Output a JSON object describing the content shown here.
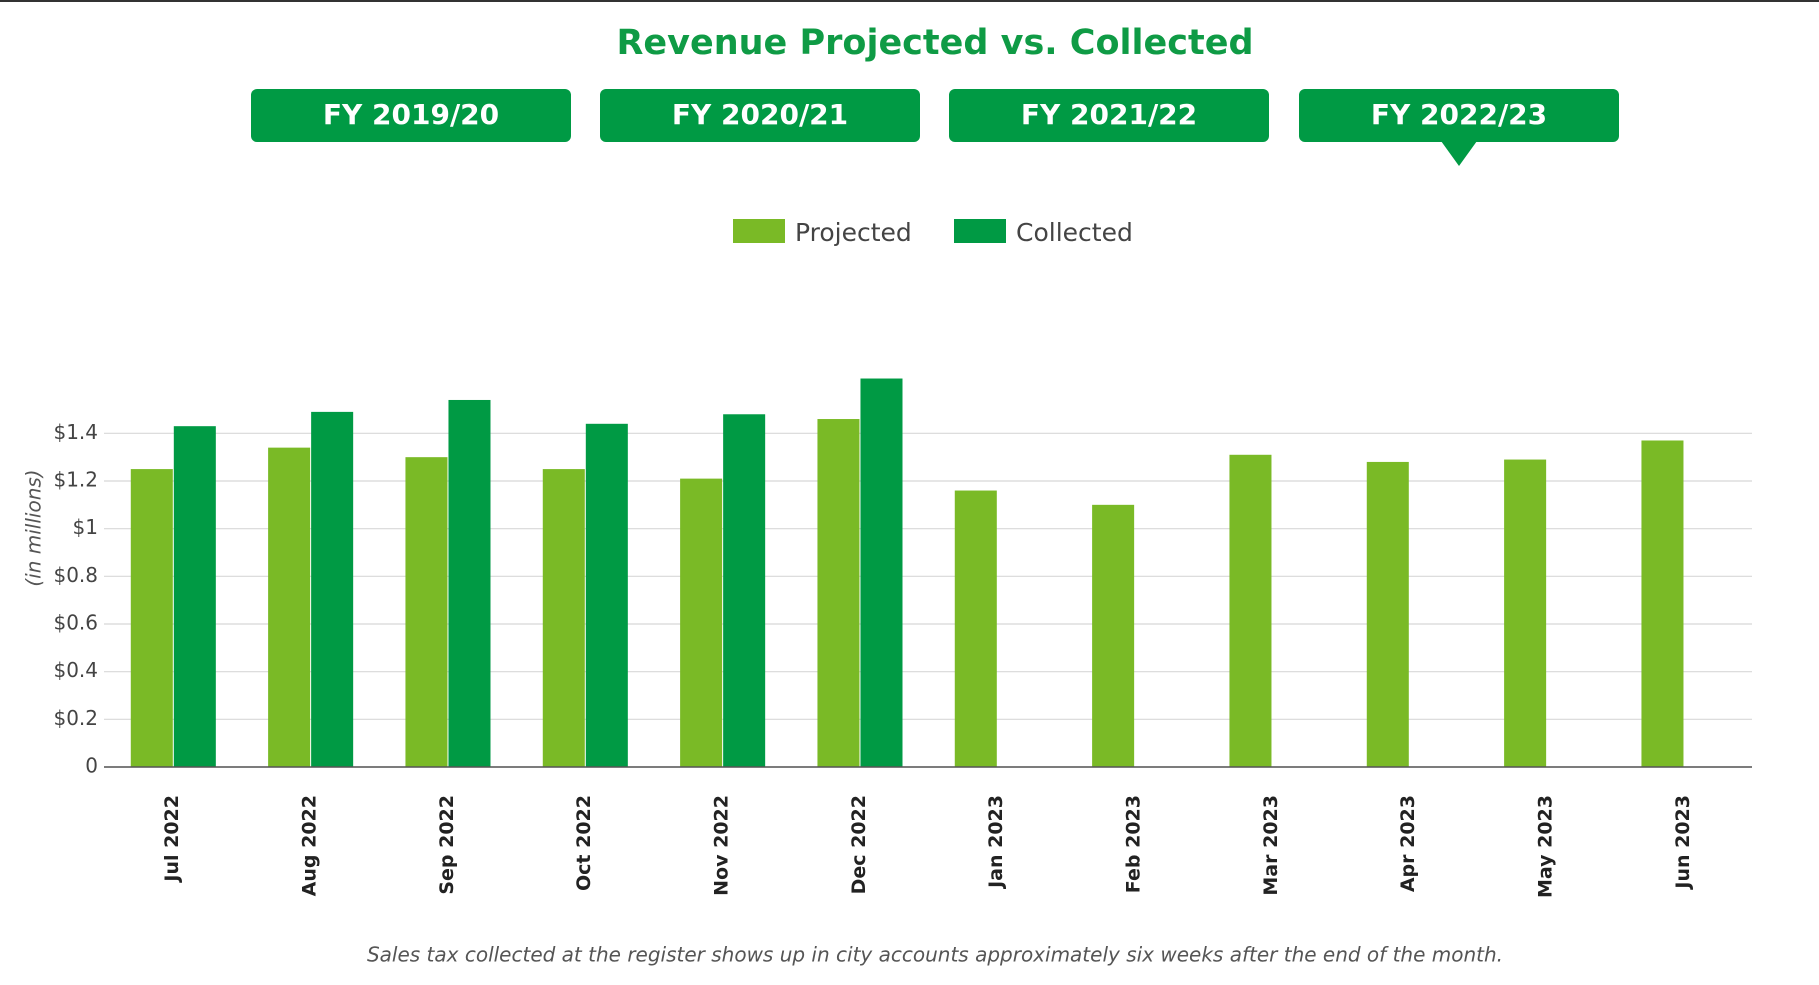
{
  "tabs": [
    {
      "label": "FY 2019/20",
      "selected": false
    },
    {
      "label": "FY 2020/21",
      "selected": false
    },
    {
      "label": "FY 2021/22",
      "selected": false
    },
    {
      "label": "FY 2022/23",
      "selected": true
    }
  ],
  "chart_data": {
    "type": "bar",
    "title": "Revenue Projected vs. Collected",
    "y_label": "(in millions)",
    "footnote": "Sales tax collected at the register shows up in city accounts approximately six weeks after the end of the month.",
    "categories": [
      "Jul 2022",
      "Aug 2022",
      "Sep 2022",
      "Oct 2022",
      "Nov 2022",
      "Dec 2022",
      "Jan 2023",
      "Feb 2023",
      "Mar 2023",
      "Apr 2023",
      "May 2023",
      "Jun 2023"
    ],
    "series": [
      {
        "name": "Projected",
        "color": "#7aba26",
        "values": [
          1.25,
          1.34,
          1.3,
          1.25,
          1.21,
          1.46,
          1.16,
          1.1,
          1.31,
          1.28,
          1.29,
          1.37
        ]
      },
      {
        "name": "Collected",
        "color": "#009a44",
        "values": [
          1.43,
          1.49,
          1.54,
          1.44,
          1.48,
          1.63,
          0,
          0,
          0,
          0,
          0,
          0
        ]
      }
    ],
    "ylim": [
      0,
      1.8
    ],
    "yticks": [
      0,
      {
        "value": 0.2,
        "label": "$0.2"
      },
      {
        "value": 0.4,
        "label": "$0.4"
      },
      {
        "value": 0.6,
        "label": "$0.6"
      },
      {
        "value": 0.8,
        "label": "$0.8"
      },
      {
        "value": 1,
        "label": "$1"
      },
      {
        "value": 1.2,
        "label": "$1.2"
      },
      {
        "value": 1.4,
        "label": "$1.4"
      }
    ],
    "grid": true,
    "legend": "top"
  }
}
